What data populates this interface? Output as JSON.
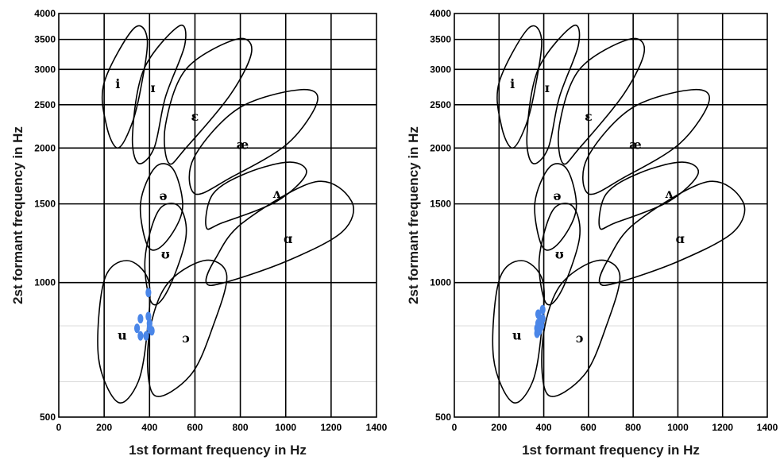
{
  "chart_data": [
    {
      "type": "scatter",
      "title": "",
      "xlabel": "1st formant frequency in Hz",
      "ylabel": "2st formant frequency in Hz",
      "xlim": [
        0,
        1400
      ],
      "ylim": [
        500,
        4000
      ],
      "yscale": "log",
      "xticks": [
        0,
        200,
        400,
        600,
        800,
        1000,
        1200,
        1400
      ],
      "yticks": [
        500,
        1000,
        1500,
        2000,
        2500,
        3000,
        3500,
        4000
      ],
      "grid": true,
      "point_color": "#4a86e8",
      "vowel_regions": [
        {
          "label": "i",
          "at": [
            260,
            2780
          ],
          "outline": [
            [
              260,
              2000
            ],
            [
              210,
              2250
            ],
            [
              200,
              2800
            ],
            [
              330,
              3700
            ],
            [
              390,
              3500
            ],
            [
              360,
              2700
            ],
            [
              320,
              2250
            ]
          ]
        },
        {
          "label": "ɪ",
          "at": [
            415,
            2720
          ],
          "outline": [
            [
              350,
              1850
            ],
            [
              325,
              2150
            ],
            [
              375,
              3000
            ],
            [
              530,
              3750
            ],
            [
              555,
              3400
            ],
            [
              470,
              2600
            ],
            [
              420,
              2000
            ]
          ]
        },
        {
          "label": "ɛ",
          "at": [
            600,
            2350
          ],
          "outline": [
            [
              485,
              1850
            ],
            [
              470,
              2250
            ],
            [
              560,
              3000
            ],
            [
              780,
              3500
            ],
            [
              850,
              3300
            ],
            [
              760,
              2650
            ],
            [
              560,
              2000
            ]
          ]
        },
        {
          "label": "æ",
          "at": [
            810,
            2030
          ],
          "outline": [
            [
              600,
              1580
            ],
            [
              595,
              1900
            ],
            [
              790,
              2450
            ],
            [
              1060,
              2700
            ],
            [
              1140,
              2550
            ],
            [
              1010,
              2050
            ],
            [
              760,
              1720
            ]
          ]
        },
        {
          "label": "ʌ",
          "at": [
            960,
            1580
          ],
          "outline": [
            [
              650,
              1330
            ],
            [
              680,
              1580
            ],
            [
              830,
              1760
            ],
            [
              1020,
              1860
            ],
            [
              1090,
              1750
            ],
            [
              960,
              1520
            ],
            [
              720,
              1360
            ]
          ]
        },
        {
          "label": "ɑ",
          "at": [
            1010,
            1250
          ],
          "outline": [
            [
              650,
              1000
            ],
            [
              690,
              1130
            ],
            [
              810,
              1360
            ],
            [
              1130,
              1680
            ],
            [
              1290,
              1520
            ],
            [
              1250,
              1300
            ],
            [
              1010,
              1120
            ],
            [
              730,
              1000
            ]
          ]
        },
        {
          "label": "ə",
          "at": [
            460,
            1560
          ],
          "outline": [
            [
              395,
              1200
            ],
            [
              360,
              1500
            ],
            [
              425,
              1810
            ],
            [
              505,
              1790
            ],
            [
              545,
              1460
            ],
            [
              470,
              1230
            ]
          ]
        },
        {
          "label": "ʊ",
          "at": [
            470,
            1155
          ],
          "outline": [
            [
              410,
              900
            ],
            [
              380,
              1130
            ],
            [
              440,
              1450
            ],
            [
              530,
              1480
            ],
            [
              560,
              1260
            ],
            [
              480,
              960
            ]
          ]
        },
        {
          "label": "u",
          "at": [
            280,
            760
          ],
          "outline": [
            [
              260,
              540
            ],
            [
              175,
              680
            ],
            [
              200,
              1010
            ],
            [
              300,
              1120
            ],
            [
              395,
              1010
            ],
            [
              390,
              780
            ],
            [
              350,
              600
            ]
          ]
        },
        {
          "label": "ɔ",
          "at": [
            560,
            750
          ],
          "outline": [
            [
              420,
              560
            ],
            [
              395,
              740
            ],
            [
              470,
              980
            ],
            [
              640,
              1120
            ],
            [
              740,
              1040
            ],
            [
              680,
              800
            ],
            [
              580,
              620
            ]
          ]
        }
      ],
      "series": [
        {
          "points": [
            [
              395,
              950
            ],
            [
              360,
              830
            ],
            [
              395,
              840
            ],
            [
              400,
              810
            ],
            [
              345,
              790
            ],
            [
              400,
              790
            ],
            [
              360,
              760
            ],
            [
              385,
              760
            ],
            [
              410,
              780
            ]
          ]
        },
        {
          "points": [
            [
              395,
              870
            ],
            [
              375,
              850
            ],
            [
              395,
              830
            ],
            [
              385,
              820
            ],
            [
              375,
              810
            ],
            [
              390,
              800
            ],
            [
              370,
              790
            ],
            [
              380,
              780
            ],
            [
              370,
              770
            ]
          ]
        }
      ]
    }
  ]
}
